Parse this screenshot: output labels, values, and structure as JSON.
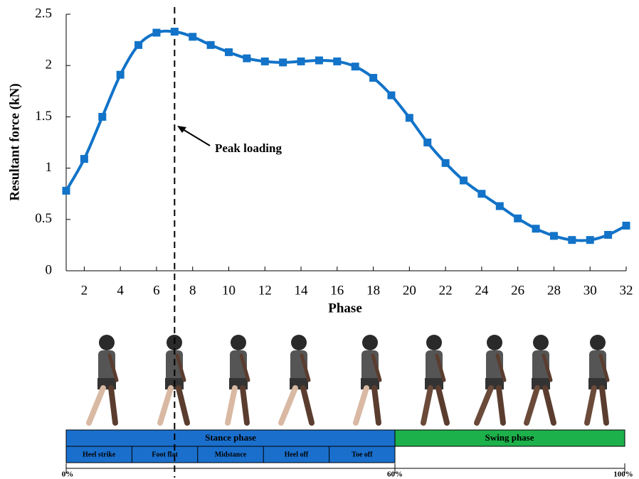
{
  "chart_data": {
    "type": "line",
    "x": [
      1,
      2,
      3,
      4,
      5,
      6,
      7,
      8,
      9,
      10,
      11,
      12,
      13,
      14,
      15,
      16,
      17,
      18,
      19,
      20,
      21,
      22,
      23,
      24,
      25,
      26,
      27,
      28,
      29,
      30,
      31,
      32
    ],
    "series": [
      {
        "color": "#1273c8",
        "values": [
          0.78,
          1.09,
          1.5,
          1.91,
          2.2,
          2.32,
          2.33,
          2.28,
          2.2,
          2.13,
          2.07,
          2.04,
          2.03,
          2.04,
          2.05,
          2.04,
          1.99,
          1.88,
          1.71,
          1.49,
          1.25,
          1.05,
          0.88,
          0.75,
          0.63,
          0.51,
          0.41,
          0.34,
          0.3,
          0.3,
          0.35,
          0.44
        ]
      }
    ],
    "xlabel": "Phase",
    "ylabel": "Resultant force (kN)",
    "xlim": [
      1,
      32
    ],
    "xticks": [
      2,
      4,
      6,
      8,
      10,
      12,
      14,
      16,
      18,
      20,
      22,
      24,
      26,
      28,
      30,
      32
    ],
    "ylim": [
      0,
      2.5
    ],
    "yticks": [
      0,
      0.5,
      1,
      1.5,
      2,
      2.5
    ],
    "annotation": {
      "text": "Peak loading",
      "x": 7
    }
  },
  "gait_bar": {
    "stance": "Stance phase",
    "swing": "Swing phase",
    "stance_sub": [
      "Heel strike",
      "Foot flat",
      "Midstance",
      "Heel off",
      "Toe off"
    ],
    "percent": [
      "0%",
      "60%",
      "100%"
    ]
  }
}
